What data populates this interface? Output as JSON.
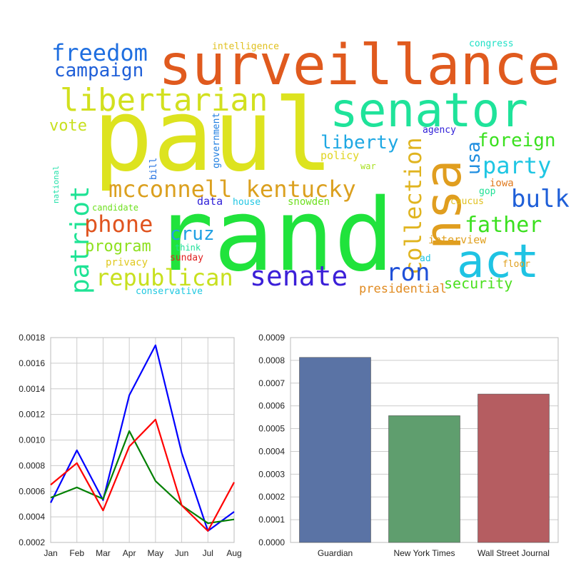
{
  "wordcloud": {
    "words": [
      {
        "text": "paul",
        "color": "#dde31f"
      },
      {
        "text": "rand",
        "color": "#20e33c"
      },
      {
        "text": "surveillance",
        "color": "#e05a1e"
      },
      {
        "text": "senator",
        "color": "#1fe39a"
      },
      {
        "text": "nsa",
        "color": "#e09e1f"
      },
      {
        "text": "act",
        "color": "#1fc3e3"
      },
      {
        "text": "libertarian",
        "color": "#d2e01f"
      },
      {
        "text": "freedom",
        "color": "#1f6fe0"
      },
      {
        "text": "campaign",
        "color": "#1f5fd8"
      },
      {
        "text": "mcconnell kentucky",
        "color": "#dba01f"
      },
      {
        "text": "patriot",
        "color": "#1fe395"
      },
      {
        "text": "senate",
        "color": "#3b1fd8"
      },
      {
        "text": "republican",
        "color": "#c8e01f"
      },
      {
        "text": "collection",
        "color": "#e0b41f"
      },
      {
        "text": "phone",
        "color": "#e0541f"
      },
      {
        "text": "party",
        "color": "#1fc6e3"
      },
      {
        "text": "father",
        "color": "#3be01f"
      },
      {
        "text": "bulk",
        "color": "#1f5fd8"
      },
      {
        "text": "ron",
        "color": "#1f50d8"
      },
      {
        "text": "foreign",
        "color": "#3be01f"
      },
      {
        "text": "liberty",
        "color": "#1fa8e3"
      },
      {
        "text": "usa",
        "color": "#1f8ee0"
      },
      {
        "text": "cruz",
        "color": "#1fa0e3"
      },
      {
        "text": "program",
        "color": "#8ee01f"
      },
      {
        "text": "vote",
        "color": "#c8e01f"
      },
      {
        "text": "security",
        "color": "#4be01f"
      },
      {
        "text": "presidential",
        "color": "#e08a1f"
      },
      {
        "text": "interview",
        "color": "#e0a01f"
      },
      {
        "text": "intelligence",
        "color": "#e0c01f"
      },
      {
        "text": "congress",
        "color": "#1fe0c6"
      },
      {
        "text": "agency",
        "color": "#2f1fd8"
      },
      {
        "text": "policy",
        "color": "#e0d41f"
      },
      {
        "text": "war",
        "color": "#a8e01f"
      },
      {
        "text": "government",
        "color": "#1f7ee0"
      },
      {
        "text": "bill",
        "color": "#1f6fe0"
      },
      {
        "text": "national",
        "color": "#1fe0a8"
      },
      {
        "text": "candidate",
        "color": "#6ee01f"
      },
      {
        "text": "data",
        "color": "#2f1fd8"
      },
      {
        "text": "house",
        "color": "#1fc6e3"
      },
      {
        "text": "snowden",
        "color": "#6ee01f"
      },
      {
        "text": "think",
        "color": "#1fe09a"
      },
      {
        "text": "sunday",
        "color": "#e01f1f"
      },
      {
        "text": "privacy",
        "color": "#e0c81f"
      },
      {
        "text": "conservative",
        "color": "#1fc8e0"
      },
      {
        "text": "iowa",
        "color": "#e07a1f"
      },
      {
        "text": "gop",
        "color": "#1fe095"
      },
      {
        "text": "caucus",
        "color": "#e0c01f"
      },
      {
        "text": "ad",
        "color": "#1fc6e3"
      },
      {
        "text": "floor",
        "color": "#e0a01f"
      }
    ]
  },
  "chart_data": [
    {
      "type": "line",
      "title": "",
      "xlabel": "",
      "ylabel": "",
      "x": [
        "Jan",
        "Feb",
        "Mar",
        "Apr",
        "May",
        "Jun",
        "Jul",
        "Aug"
      ],
      "yticks": [
        "0.0002",
        "0.0004",
        "0.0006",
        "0.0008",
        "0.0010",
        "0.0012",
        "0.0014",
        "0.0016",
        "0.0018"
      ],
      "ylim": [
        0.0002,
        0.0018
      ],
      "grid": true,
      "series": [
        {
          "name": "blue",
          "color": "#0000ff",
          "values": [
            0.00051,
            0.00092,
            0.00053,
            0.00135,
            0.00174,
            0.0009,
            0.00029,
            0.00044
          ]
        },
        {
          "name": "green",
          "color": "#008000",
          "values": [
            0.00055,
            0.00063,
            0.00054,
            0.00107,
            0.00068,
            0.00049,
            0.00035,
            0.00038
          ]
        },
        {
          "name": "red",
          "color": "#ff0000",
          "values": [
            0.00065,
            0.00082,
            0.00045,
            0.00095,
            0.00116,
            0.00049,
            0.00029,
            0.00067
          ]
        }
      ]
    },
    {
      "type": "bar",
      "title": "",
      "xlabel": "",
      "ylabel": "",
      "categories": [
        "Guardian",
        "New York Times",
        "Wall Street Journal"
      ],
      "values": [
        0.000813,
        0.000557,
        0.000652
      ],
      "colors": [
        "#5a73a5",
        "#5f9e6e",
        "#b55d61"
      ],
      "yticks": [
        "0.0000",
        "0.0001",
        "0.0002",
        "0.0003",
        "0.0004",
        "0.0005",
        "0.0006",
        "0.0007",
        "0.0008",
        "0.0009"
      ],
      "ylim": [
        0,
        0.0009
      ],
      "grid": true
    }
  ]
}
